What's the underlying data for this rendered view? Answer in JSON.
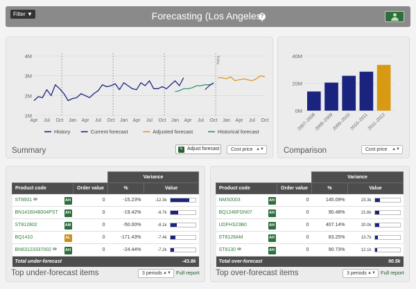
{
  "header": {
    "filter_label": "Filter ▼",
    "title": "Forecasting (Los Angeles)",
    "help_icon": "question-circle-icon",
    "user_icon": "user-icon"
  },
  "summary": {
    "title": "Summary",
    "adjust_label": "Adjust forecast",
    "select_label": "Cost price",
    "y_ticks": [
      "4M",
      "3M",
      "2M",
      "1M"
    ],
    "x_ticks": [
      "Apr",
      "Jul",
      "Oct",
      "Jan",
      "Apr",
      "Jul",
      "Oct",
      "Jan",
      "Apr",
      "Jul",
      "Oct",
      "Jan",
      "Apr",
      "Jul",
      "Oct",
      "Jan",
      "Apr",
      "Jul",
      "Oct"
    ],
    "divider_label": "Today",
    "legend": [
      {
        "label": "History",
        "color": "#1a237e"
      },
      {
        "label": "Current forecast",
        "color": "#1a237e"
      },
      {
        "label": "Adjusted forecast",
        "color": "#d79a2a"
      },
      {
        "label": "Historical forecast",
        "color": "#2a8a6a"
      }
    ]
  },
  "comparison": {
    "title": "Comparison",
    "select_label": "Cost price"
  },
  "chart_data": [
    {
      "type": "line",
      "ylim": [
        1,
        4
      ],
      "y_unit": "M",
      "series": [
        {
          "name": "History",
          "values": [
            1.75,
            1.95,
            1.9,
            2.3,
            2.0,
            2.55,
            2.35,
            2.1,
            1.75,
            1.85,
            1.9,
            2.1,
            2.0,
            1.9,
            2.1,
            2.25,
            2.55,
            2.45,
            2.5,
            2.6,
            2.3,
            2.65,
            2.5,
            2.35,
            2.3,
            2.65,
            2.5,
            2.75,
            2.35,
            2.35,
            2.45,
            2.35,
            2.55,
            2.75,
            2.5,
            2.9
          ]
        },
        {
          "name": "Historical forecast",
          "values": [
            2.2,
            2.25,
            2.35,
            2.35,
            2.4,
            2.5,
            2.5,
            2.55,
            2.55,
            2.6
          ]
        },
        {
          "name": "Current forecast",
          "values": [
            2.3,
            2.5,
            2.65
          ]
        },
        {
          "name": "Adjusted forecast",
          "values": [
            2.9,
            2.9,
            2.85,
            2.95,
            2.75,
            2.8,
            2.85,
            2.8,
            2.75,
            2.85,
            3.0,
            2.95
          ]
        }
      ]
    },
    {
      "type": "bar",
      "categories": [
        "2007–2008",
        "2008–2009",
        "2009–2010",
        "2010–2011",
        "2011–2012"
      ],
      "values": [
        14,
        20.5,
        25.5,
        28.5,
        33.5
      ],
      "colors": [
        "#1a237e",
        "#1a237e",
        "#1a237e",
        "#1a237e",
        "#d79a12"
      ],
      "ylim": [
        0,
        40
      ],
      "y_ticks": [
        "40M",
        "20M",
        "0M"
      ]
    }
  ],
  "under": {
    "title": "Top under-forecast items",
    "variance_header": "Variance",
    "col_code": "Product code",
    "col_order": "Order value",
    "col_pct": "%",
    "col_value": "Value",
    "rows": [
      {
        "code": "ST8501",
        "badge": "AH",
        "order": "0",
        "pct": "-15.23%",
        "value": "-12.3k",
        "fill": 0.75,
        "comment": true
      },
      {
        "code": "BN1416048004PST",
        "badge": "AH",
        "order": "0",
        "pct": "-19.42%",
        "value": "-8.7k",
        "fill": 0.3,
        "comment": false
      },
      {
        "code": "ST812802",
        "badge": "AM",
        "order": "0",
        "pct": "-50.00%",
        "value": "-8.1k",
        "fill": 0.25,
        "comment": false
      },
      {
        "code": "BQ1410",
        "badge": "AL",
        "order": "0",
        "pct": "-171.43%",
        "value": "-7.4k",
        "fill": 0.2,
        "comment": false
      },
      {
        "code": "BN63123337002",
        "badge": "AH",
        "order": "0",
        "pct": "-24.44%",
        "value": "-7.2k",
        "fill": 0.15,
        "comment": true
      }
    ],
    "total_label": "Total under-forecast",
    "total_value": "-43.8k",
    "periods_label": "3 periods",
    "full_report": "Full report"
  },
  "over": {
    "title": "Top over-forecast items",
    "variance_header": "Variance",
    "col_code": "Product code",
    "col_order": "Order value",
    "col_pct": "%",
    "col_value": "Value",
    "rows": [
      {
        "code": "NMS0003",
        "badge": "AH",
        "order": "0",
        "pct": "145.09%",
        "value": "23.3k",
        "fill": 0.2,
        "comment": false
      },
      {
        "code": "BQ1246FGN07",
        "badge": "AH",
        "order": "0",
        "pct": "90.48%",
        "value": "21.6k",
        "fill": 0.18,
        "comment": false
      },
      {
        "code": "UDFHS23B0",
        "badge": "AH",
        "order": "0",
        "pct": "407.14%",
        "value": "20.0k",
        "fill": 0.16,
        "comment": false
      },
      {
        "code": "ST8128AM",
        "badge": "AH",
        "order": "0",
        "pct": "83.25%",
        "value": "13.7k",
        "fill": 0.1,
        "comment": false
      },
      {
        "code": "ST8130",
        "badge": "AH",
        "order": "0",
        "pct": "90.73%",
        "value": "12.1k",
        "fill": 0.08,
        "comment": true
      }
    ],
    "total_label": "Total over-forecast",
    "total_value": "90.5k",
    "periods_label": "3 periods",
    "full_report": "Full report"
  }
}
